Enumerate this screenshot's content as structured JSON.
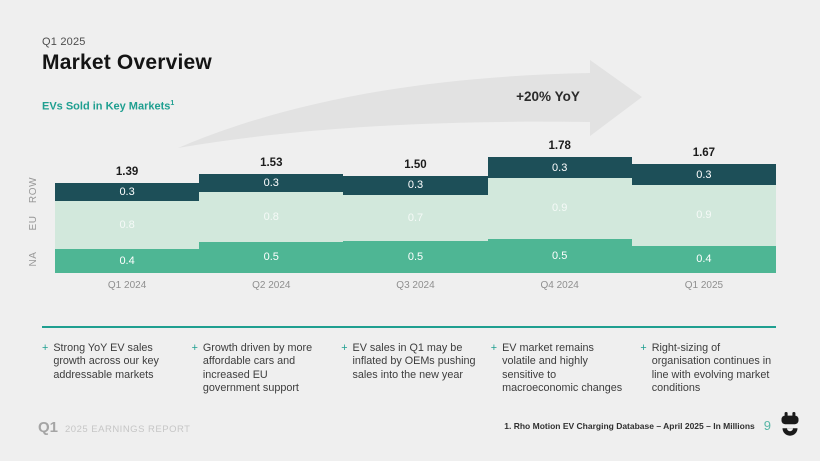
{
  "colors": {
    "background": "#efefef",
    "accent": "#1f9f90",
    "arrow": "#e2e2e2",
    "row_segment": "#1d4f58",
    "eu_segment": "#d2e8dc",
    "na_segment": "#4eb694"
  },
  "header": {
    "eyebrow": "Q1 2025",
    "title": "Market Overview",
    "subtitle": "EVs Sold in Key Markets",
    "subtitle_note": "1"
  },
  "chart_data": {
    "type": "bar",
    "stacked": true,
    "title": "EVs Sold in Key Markets (In Millions)",
    "annotation": "+20% YoY",
    "categories": [
      "Q1 2024",
      "Q2 2024",
      "Q3 2024",
      "Q4 2024",
      "Q1 2025"
    ],
    "series": [
      {
        "name": "NA",
        "color": "#4eb694",
        "values": [
          0.4,
          0.5,
          0.5,
          0.5,
          0.4
        ]
      },
      {
        "name": "EU",
        "color": "#d2e8dc",
        "values": [
          0.8,
          0.8,
          0.7,
          0.9,
          0.9
        ]
      },
      {
        "name": "ROW",
        "color": "#1d4f58",
        "values": [
          0.3,
          0.3,
          0.3,
          0.3,
          0.3
        ]
      }
    ],
    "totals": [
      1.39,
      1.53,
      1.5,
      1.78,
      1.67
    ],
    "totals_display": [
      "1.39",
      "1.53",
      "1.50",
      "1.78",
      "1.67"
    ],
    "unit": "Millions",
    "legend_position": "left-axis",
    "grid": false
  },
  "bullet_marker": "+",
  "bullets": [
    "Strong YoY EV sales growth across our key addressable markets",
    "Growth driven by more affordable cars and increased EU government support",
    "EV sales in Q1 may be inflated by OEMs pushing sales into the new year",
    "EV market remains volatile and highly sensitive to macroeconomic changes",
    "Right-sizing of organisation continues in line with evolving market conditions"
  ],
  "footer": {
    "quarter": "Q1",
    "report_label": "2025 EARNINGS REPORT",
    "footnote": "1. Rho Motion EV Charging Database – April 2025 – In Millions",
    "page_number": "9"
  }
}
